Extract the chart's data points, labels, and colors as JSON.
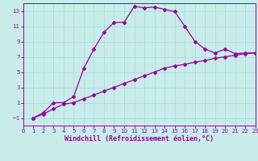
{
  "title": "",
  "xlabel": "Windchill (Refroidissement éolien,°C)",
  "ylabel": "",
  "bg_color": "#c8ecea",
  "grid_color": "#a8d8d8",
  "line_color": "#990099",
  "line1_x": [
    1,
    2,
    3,
    4,
    5,
    6,
    7,
    8,
    9,
    10,
    11,
    12,
    13,
    14,
    15,
    16,
    17,
    18,
    19,
    20,
    21,
    22,
    23
  ],
  "line1_y": [
    -1.0,
    -0.3,
    1.0,
    1.0,
    1.8,
    5.5,
    8.0,
    10.2,
    11.5,
    11.5,
    13.6,
    13.4,
    13.5,
    13.2,
    12.9,
    11.0,
    9.0,
    8.0,
    7.5,
    8.0,
    7.4,
    7.5,
    7.5
  ],
  "line2_x": [
    1,
    2,
    3,
    4,
    5,
    6,
    7,
    8,
    9,
    10,
    11,
    12,
    13,
    14,
    15,
    16,
    17,
    18,
    19,
    20,
    21,
    22,
    23
  ],
  "line2_y": [
    -1.0,
    -0.5,
    0.2,
    0.8,
    1.0,
    1.5,
    2.0,
    2.5,
    3.0,
    3.5,
    4.0,
    4.5,
    5.0,
    5.5,
    5.8,
    6.0,
    6.3,
    6.5,
    6.8,
    7.0,
    7.2,
    7.4,
    7.5
  ],
  "xlim": [
    0,
    23
  ],
  "ylim": [
    -2,
    14
  ],
  "xticks": [
    0,
    1,
    2,
    3,
    4,
    5,
    6,
    7,
    8,
    9,
    10,
    11,
    12,
    13,
    14,
    15,
    16,
    17,
    18,
    19,
    20,
    21,
    22,
    23
  ],
  "yticks": [
    -1,
    1,
    3,
    5,
    7,
    9,
    11,
    13
  ],
  "tick_fontsize": 5.0,
  "xlabel_fontsize": 6.0,
  "marker": "D",
  "markersize": 2.0,
  "linewidth": 0.9
}
